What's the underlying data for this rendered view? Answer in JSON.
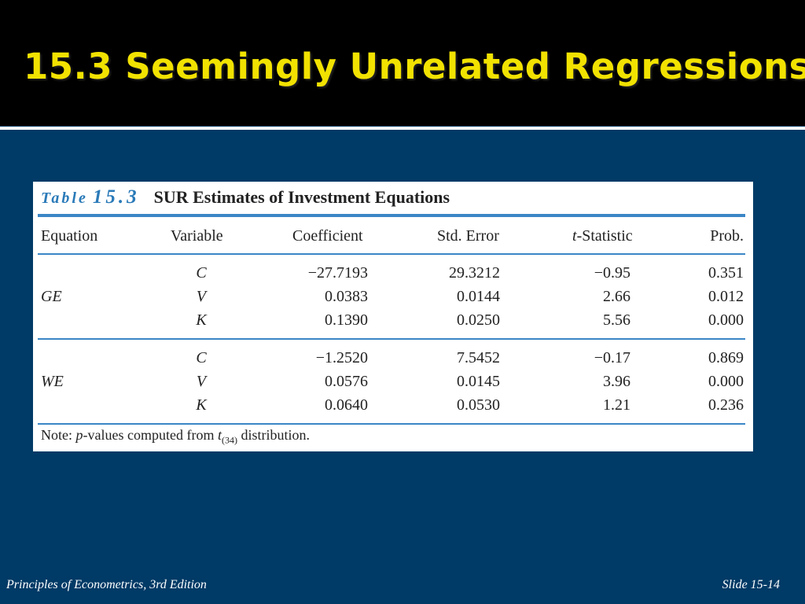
{
  "slide": {
    "title": "15.3 Seemingly Unrelated Regressions",
    "footer_left": "Principles of Econometrics, 3rd Edition",
    "footer_right": "Slide 15-14"
  },
  "colors": {
    "background": "#003a66",
    "title_bar": "#000000",
    "title_text": "#f2e200",
    "table_accent": "#3a86c6"
  },
  "table": {
    "label_word": "Table",
    "label_number": "15.3",
    "title": "SUR Estimates of Investment Equations",
    "headers": {
      "equation": "Equation",
      "variable": "Variable",
      "coefficient": "Coefficient",
      "std_error": "Std. Error",
      "t_statistic_prefix": "t",
      "t_statistic_suffix": "-Statistic",
      "prob": "Prob."
    },
    "groups": [
      {
        "equation": "GE",
        "rows": [
          {
            "variable": "C",
            "coefficient": "−27.7193",
            "std_error": "29.3212",
            "t_statistic": "−0.95",
            "prob": "0.351"
          },
          {
            "variable": "V",
            "coefficient": "0.0383",
            "std_error": "0.0144",
            "t_statistic": "2.66",
            "prob": "0.012"
          },
          {
            "variable": "K",
            "coefficient": "0.1390",
            "std_error": "0.0250",
            "t_statistic": "5.56",
            "prob": "0.000"
          }
        ]
      },
      {
        "equation": "WE",
        "rows": [
          {
            "variable": "C",
            "coefficient": "−1.2520",
            "std_error": "7.5452",
            "t_statistic": "−0.17",
            "prob": "0.869"
          },
          {
            "variable": "V",
            "coefficient": "0.0576",
            "std_error": "0.0145",
            "t_statistic": "3.96",
            "prob": "0.000"
          },
          {
            "variable": "K",
            "coefficient": "0.0640",
            "std_error": "0.0530",
            "t_statistic": "1.21",
            "prob": "0.236"
          }
        ]
      }
    ],
    "note": {
      "prefix": "Note: ",
      "p": "p",
      "middle": "-values computed from ",
      "t": "t",
      "subscript": "(34)",
      "suffix": " distribution."
    }
  }
}
